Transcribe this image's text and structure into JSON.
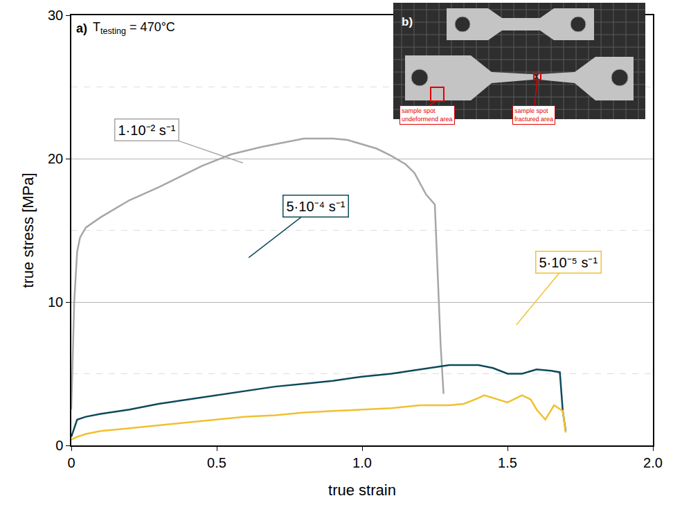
{
  "chart_data": {
    "type": "line",
    "x_label": "true strain",
    "y_label": "true stress [MPa]",
    "xlim": [
      0,
      2
    ],
    "ylim": [
      0,
      30
    ],
    "xticks": [
      0,
      0.5,
      {
        "value": 1,
        "label": "1.0"
      },
      1.5,
      {
        "value": 2,
        "label": "2.0"
      }
    ],
    "yticks": [
      0,
      10,
      20,
      30
    ],
    "grid": true,
    "series": [
      {
        "name": "1·10⁻² s⁻¹",
        "color": "#a6a6a6",
        "x": [
          0,
          0.01,
          0.02,
          0.03,
          0.05,
          0.1,
          0.15,
          0.2,
          0.3,
          0.4,
          0.45,
          0.55,
          0.65,
          0.7,
          0.8,
          0.9,
          0.95,
          1.0,
          1.05,
          1.1,
          1.15,
          1.18,
          1.22,
          1.25,
          1.26,
          1.27,
          1.28
        ],
        "values": [
          2.5,
          10,
          13.5,
          14.5,
          15.2,
          15.9,
          16.5,
          17.1,
          18.0,
          19.0,
          19.5,
          20.3,
          20.8,
          21.0,
          21.4,
          21.4,
          21.3,
          21.0,
          20.7,
          20.2,
          19.6,
          19.0,
          17.5,
          16.8,
          12,
          7,
          3.6
        ]
      },
      {
        "name": "5·10⁻⁴ s⁻¹",
        "color": "#0d4a5a",
        "x": [
          0,
          0.01,
          0.02,
          0.05,
          0.1,
          0.2,
          0.3,
          0.4,
          0.5,
          0.6,
          0.7,
          0.8,
          0.9,
          1.0,
          1.1,
          1.2,
          1.3,
          1.4,
          1.45,
          1.5,
          1.55,
          1.6,
          1.65,
          1.68,
          1.69,
          1.7
        ],
        "values": [
          0.6,
          1.2,
          1.8,
          2.0,
          2.2,
          2.5,
          2.9,
          3.2,
          3.5,
          3.8,
          4.1,
          4.3,
          4.5,
          4.8,
          5.0,
          5.3,
          5.6,
          5.6,
          5.4,
          5.0,
          5.0,
          5.3,
          5.2,
          5.1,
          2.4,
          1.0
        ]
      },
      {
        "name": "5·10⁻⁵ s⁻¹",
        "color": "#f0c030",
        "x": [
          0,
          0.02,
          0.05,
          0.1,
          0.2,
          0.3,
          0.4,
          0.5,
          0.6,
          0.7,
          0.8,
          0.9,
          1.0,
          1.1,
          1.2,
          1.3,
          1.35,
          1.4,
          1.42,
          1.45,
          1.5,
          1.55,
          1.58,
          1.6,
          1.63,
          1.66,
          1.69,
          1.7
        ],
        "values": [
          0.4,
          0.6,
          0.8,
          1.0,
          1.2,
          1.4,
          1.6,
          1.8,
          2.0,
          2.1,
          2.3,
          2.4,
          2.5,
          2.6,
          2.8,
          2.8,
          2.9,
          3.3,
          3.5,
          3.3,
          3.0,
          3.5,
          3.2,
          2.5,
          1.8,
          2.8,
          2.4,
          0.9
        ]
      }
    ],
    "annotations": {
      "panel_a": "a)",
      "condition": {
        "symbol": "T",
        "subscript": "testing",
        "text": " = 470°C"
      },
      "panel_b": "b)",
      "inset_labels": [
        "sample spot undeformend area",
        "sample spot fractured area"
      ]
    }
  }
}
